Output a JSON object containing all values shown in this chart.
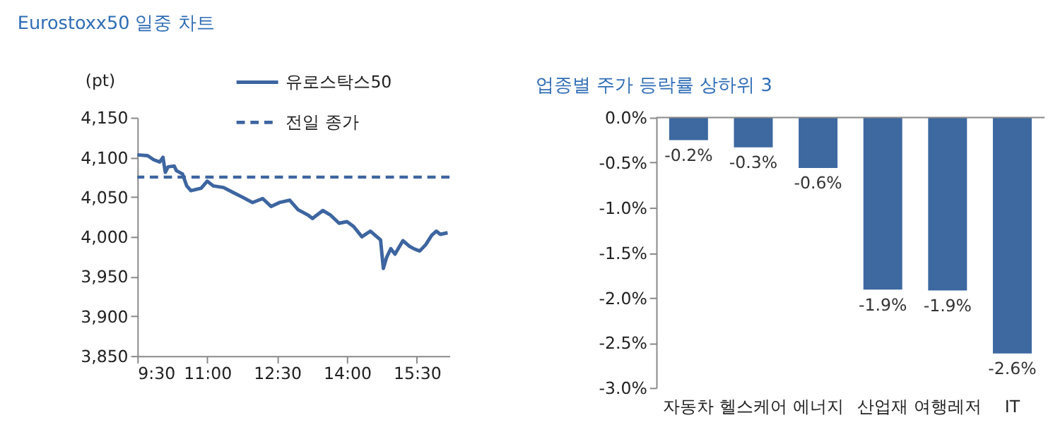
{
  "chart_data": [
    {
      "type": "line",
      "title": "Eurostoxx50 일중 차트",
      "ylabel": "(pt)",
      "series": [
        {
          "name": "유로스탁스50",
          "color": "#3d65a0",
          "x": [
            9.5,
            9.72,
            9.85,
            9.98,
            10.05,
            10.1,
            10.16,
            10.29,
            10.34,
            10.47,
            10.56,
            10.65,
            10.87,
            11.0,
            11.13,
            11.35,
            11.58,
            11.75,
            11.97,
            12.19,
            12.37,
            12.55,
            12.77,
            12.95,
            13.17,
            13.26,
            13.48,
            13.65,
            13.83,
            14.0,
            14.14,
            14.32,
            14.5,
            14.72,
            14.78,
            14.85,
            14.94,
            15.03,
            15.2,
            15.34,
            15.43,
            15.56,
            15.69,
            15.82,
            15.92,
            16.0,
            16.16
          ],
          "values": [
            4103,
            4102,
            4097,
            4094,
            4100,
            4081,
            4088,
            4089,
            4083,
            4079,
            4064,
            4058,
            4061,
            4070,
            4064,
            4062,
            4055,
            4050,
            4043,
            4048,
            4038,
            4043,
            4046,
            4034,
            4027,
            4023,
            4033,
            4027,
            4017,
            4019,
            4013,
            4000,
            4007,
            3996,
            3960,
            3974,
            3985,
            3978,
            3995,
            3988,
            3985,
            3982,
            3990,
            4002,
            4007,
            4003,
            4005
          ]
        }
      ],
      "ref_lines": [
        {
          "axis": "y",
          "value": 4075,
          "label": "전일 종가",
          "color": "#3d65a0",
          "line_style": "dashed"
        }
      ],
      "xlim": [
        9.5,
        16.2
      ],
      "xticks": [
        {
          "value": 9.5,
          "label": "9:30"
        },
        {
          "value": 11,
          "label": "11:00"
        },
        {
          "value": 12.5,
          "label": "12:30"
        },
        {
          "value": 14,
          "label": "14:00"
        },
        {
          "value": 15.5,
          "label": "15:30"
        }
      ],
      "ylim": [
        3850,
        4150
      ],
      "yticks": [
        {
          "value": 3850,
          "label": "3,850"
        },
        {
          "value": 3900,
          "label": "3,900"
        },
        {
          "value": 3950,
          "label": "3,950"
        },
        {
          "value": 4000,
          "label": "4,000"
        },
        {
          "value": 4050,
          "label": "4,050"
        },
        {
          "value": 4100,
          "label": "4,100"
        },
        {
          "value": 4150,
          "label": "4,150"
        }
      ],
      "grid": false,
      "legend": "top right",
      "line_style": "solid",
      "marker": "none"
    },
    {
      "type": "bar",
      "title": "업종별 주가 등락률 상하위 3",
      "categories": [
        "자동차",
        "헬스케어",
        "에너지",
        "산업재",
        "여행레저",
        "IT"
      ],
      "values": [
        -0.25,
        -0.33,
        -0.56,
        -1.91,
        -1.92,
        -2.62
      ],
      "value_labels": [
        "-0.2%",
        "-0.3%",
        "-0.6%",
        "-1.9%",
        "-1.9%",
        "-2.6%"
      ],
      "color": "#3d68a0",
      "ylim": [
        -3.0,
        0.0
      ],
      "yticks": [
        {
          "value": -3.0,
          "label": "-3.0%"
        },
        {
          "value": -2.5,
          "label": "-2.5%"
        },
        {
          "value": -2.0,
          "label": "-2.0%"
        },
        {
          "value": -1.5,
          "label": "-1.5%"
        },
        {
          "value": -1.0,
          "label": "-1.0%"
        },
        {
          "value": -0.5,
          "label": "-0.5%"
        },
        {
          "value": 0.0,
          "label": "0.0%"
        }
      ],
      "grid": false,
      "legend": false
    }
  ]
}
